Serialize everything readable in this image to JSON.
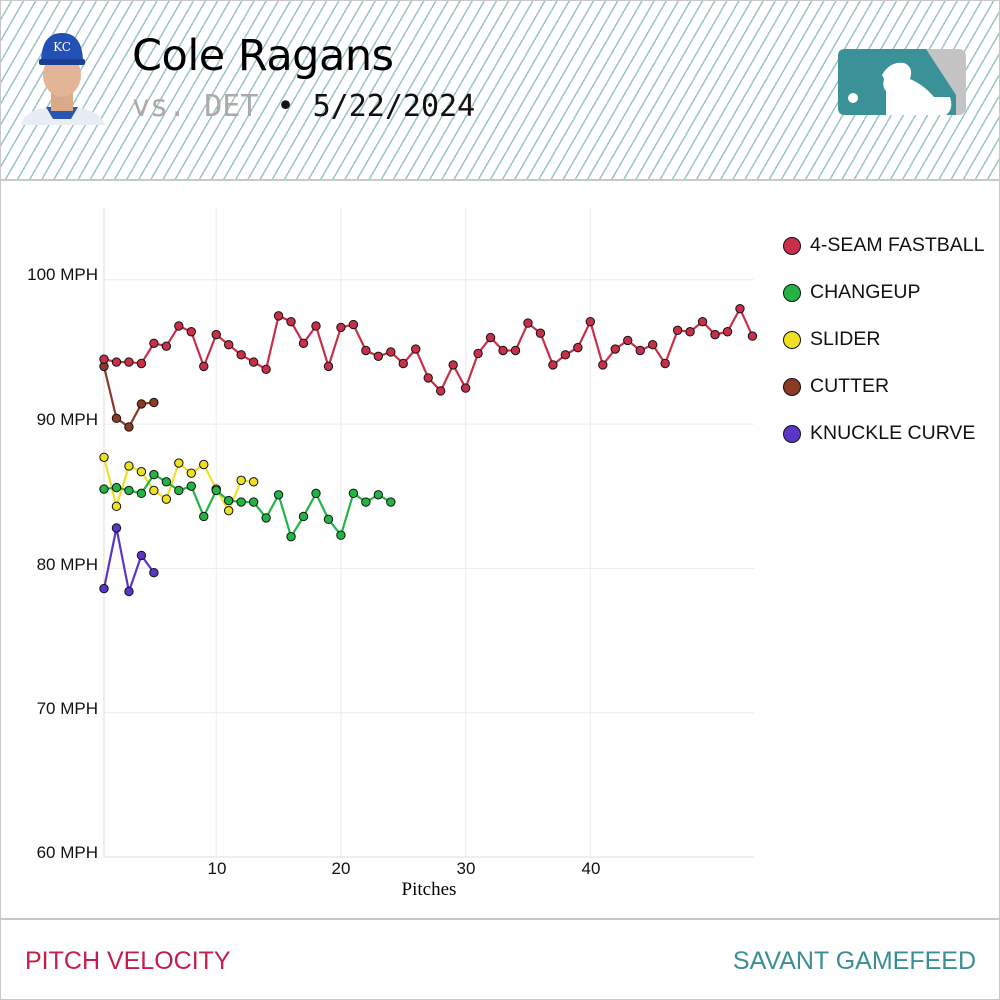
{
  "header": {
    "player_name": "Cole Ragans",
    "opponent": "vs. DET",
    "separator": "•",
    "date": "5/22/2024",
    "logo": "MLB"
  },
  "footer": {
    "left": "PITCH VELOCITY",
    "right": "SAVANT GAMEFEED"
  },
  "chart_data": {
    "type": "line",
    "title": "Pitch Velocity",
    "xlabel": "Pitches",
    "ylabel": "",
    "xlim": [
      1,
      53
    ],
    "ylim": [
      60,
      105
    ],
    "x_ticks": [
      10,
      20,
      30,
      40
    ],
    "y_ticks": [
      60,
      70,
      80,
      90,
      100
    ],
    "y_tick_labels": [
      "60 MPH",
      "70 MPH",
      "80 MPH",
      "90 MPH",
      "100 MPH"
    ],
    "grid": true,
    "legend_position": "right",
    "series": [
      {
        "name": "4-SEAM FASTBALL",
        "color": "#c8304a",
        "values": [
          94.5,
          94.3,
          94.3,
          94.2,
          95.6,
          95.4,
          96.8,
          96.4,
          94.0,
          96.2,
          95.5,
          94.8,
          94.3,
          93.8,
          97.5,
          97.1,
          95.6,
          96.8,
          94.0,
          96.7,
          96.9,
          95.1,
          94.7,
          95.0,
          94.2,
          95.2,
          93.2,
          92.3,
          94.1,
          92.5,
          94.9,
          96.0,
          95.1,
          95.1,
          97.0,
          96.3,
          94.1,
          94.8,
          95.3,
          97.1,
          94.1,
          95.2,
          95.8,
          95.1,
          95.5,
          94.2,
          96.5,
          96.4,
          97.1,
          96.2,
          96.4,
          98.0,
          96.1
        ]
      },
      {
        "name": "CHANGEUP",
        "color": "#22b545",
        "values": [
          85.5,
          85.6,
          85.4,
          85.2,
          86.5,
          86.0,
          85.4,
          85.7,
          83.6,
          85.4,
          84.7,
          84.6,
          84.6,
          83.5,
          85.1,
          82.2,
          83.6,
          85.2,
          83.4,
          82.3,
          85.2,
          84.6,
          85.1,
          84.6
        ]
      },
      {
        "name": "SLIDER",
        "color": "#eee022",
        "values": [
          87.7,
          84.3,
          87.1,
          86.7,
          85.4,
          84.8,
          87.3,
          86.6,
          87.2,
          85.5,
          84.0,
          86.1,
          86.0
        ]
      },
      {
        "name": "CUTTER",
        "color": "#8b3a26",
        "values": [
          94.0,
          90.4,
          89.8,
          91.4,
          91.5
        ]
      },
      {
        "name": "KNUCKLE CURVE",
        "color": "#5a35c8",
        "values": [
          78.6,
          82.8,
          78.4,
          80.9,
          79.7
        ]
      }
    ]
  }
}
